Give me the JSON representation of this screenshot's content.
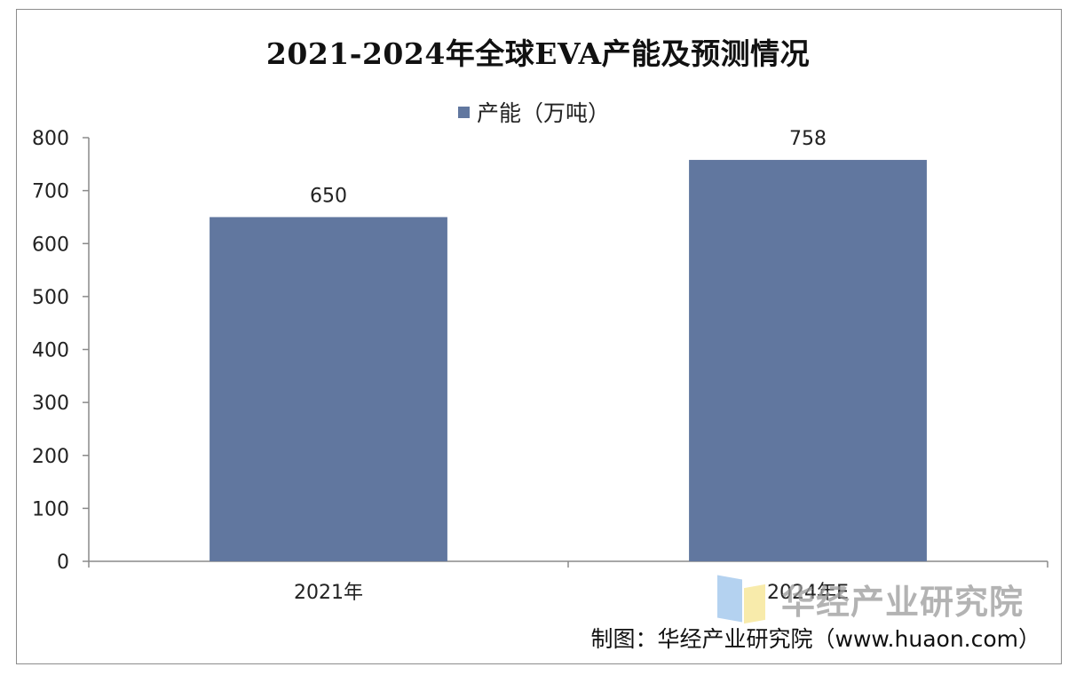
{
  "chart_data": {
    "type": "bar",
    "title": "2021-2024年全球EVA产能及预测情况",
    "categories": [
      "2021年",
      "2024年E"
    ],
    "series": [
      {
        "name": "产能（万吨）",
        "values": [
          650,
          758
        ],
        "color": "#61779f"
      }
    ],
    "data_labels": [
      "650",
      "758"
    ],
    "y_ticks": [
      0,
      100,
      200,
      300,
      400,
      500,
      600,
      700,
      800
    ],
    "ylim": [
      0,
      800
    ],
    "grid": false,
    "legend_position": "top-center"
  },
  "source": "制图：华经产业研究院（www.huaon.com）",
  "watermark": "华经产业研究院"
}
